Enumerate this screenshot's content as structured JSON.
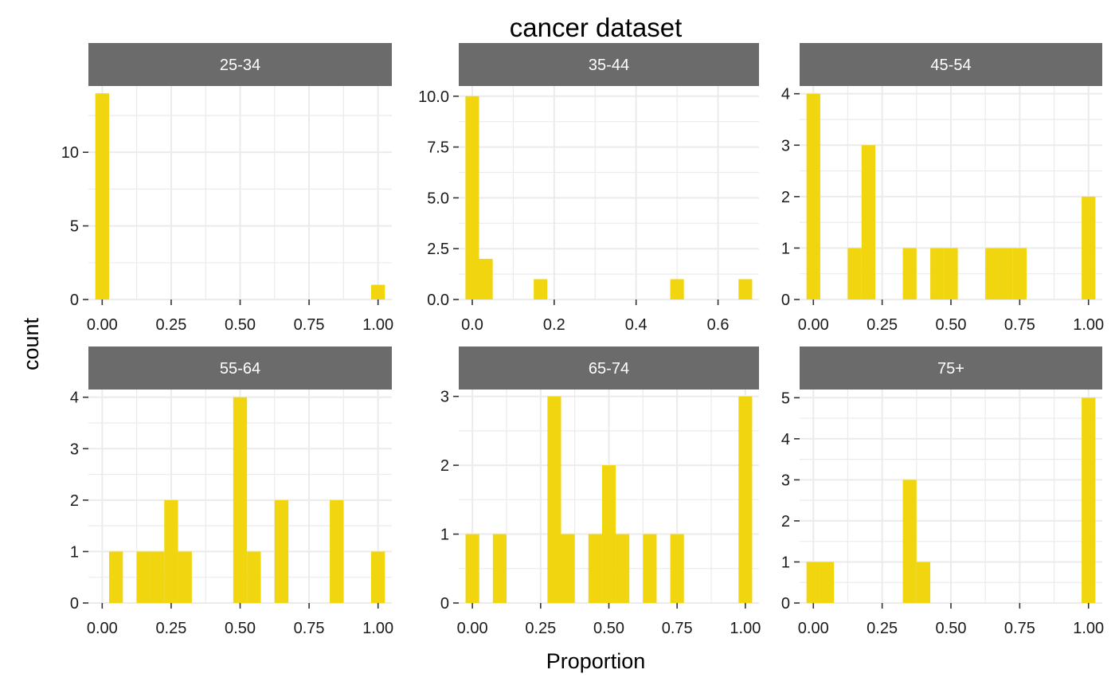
{
  "title": "cancer dataset",
  "xlabel": "Proportion",
  "ylabel": "count",
  "colors": {
    "bar": "#F0D50F",
    "strip": "#6B6B6B",
    "strip_text": "#FFFFFF",
    "grid": "#EBEBEB",
    "axis_text": "#1A1A1A",
    "background": "#FFFFFF"
  },
  "chart_data": [
    {
      "type": "bar",
      "panel": "25-34",
      "xlim": [
        -0.05,
        1.05
      ],
      "ylim": [
        0,
        14.5
      ],
      "xticks": [
        0,
        0.25,
        0.5,
        0.75,
        1
      ],
      "xtick_labels": [
        "0.00",
        "0.25",
        "0.50",
        "0.75",
        "1.00"
      ],
      "yticks": [
        0,
        5,
        10
      ],
      "ytick_labels": [
        "0",
        "5",
        "10"
      ],
      "bar_width": 0.05,
      "bars": [
        {
          "x": 0.0,
          "count": 14
        },
        {
          "x": 1.0,
          "count": 1
        }
      ]
    },
    {
      "type": "bar",
      "panel": "35-44",
      "xlim": [
        -0.033,
        0.7
      ],
      "ylim": [
        0,
        10.5
      ],
      "xticks": [
        0,
        0.2,
        0.4,
        0.6
      ],
      "xtick_labels": [
        "0.0",
        "0.2",
        "0.4",
        "0.6"
      ],
      "yticks": [
        0,
        2.5,
        5,
        7.5,
        10
      ],
      "ytick_labels": [
        "0.0",
        "2.5",
        "5.0",
        "7.5",
        "10.0"
      ],
      "bar_width": 0.0333,
      "bars": [
        {
          "x": 0.0,
          "count": 10
        },
        {
          "x": 0.0333,
          "count": 2
        },
        {
          "x": 0.1667,
          "count": 1
        },
        {
          "x": 0.5,
          "count": 1
        },
        {
          "x": 0.6667,
          "count": 1
        }
      ]
    },
    {
      "type": "bar",
      "panel": "45-54",
      "xlim": [
        -0.05,
        1.05
      ],
      "ylim": [
        0,
        4.15
      ],
      "xticks": [
        0,
        0.25,
        0.5,
        0.75,
        1
      ],
      "xtick_labels": [
        "0.00",
        "0.25",
        "0.50",
        "0.75",
        "1.00"
      ],
      "yticks": [
        0,
        1,
        2,
        3,
        4
      ],
      "ytick_labels": [
        "0",
        "1",
        "2",
        "3",
        "4"
      ],
      "bar_width": 0.05,
      "bars": [
        {
          "x": 0.0,
          "count": 4
        },
        {
          "x": 0.15,
          "count": 1
        },
        {
          "x": 0.2,
          "count": 3
        },
        {
          "x": 0.35,
          "count": 1
        },
        {
          "x": 0.45,
          "count": 1
        },
        {
          "x": 0.5,
          "count": 1
        },
        {
          "x": 0.65,
          "count": 1
        },
        {
          "x": 0.7,
          "count": 1
        },
        {
          "x": 0.75,
          "count": 1
        },
        {
          "x": 1.0,
          "count": 2
        }
      ]
    },
    {
      "type": "bar",
      "panel": "55-64",
      "xlim": [
        -0.05,
        1.05
      ],
      "ylim": [
        0,
        4.15
      ],
      "xticks": [
        0,
        0.25,
        0.5,
        0.75,
        1
      ],
      "xtick_labels": [
        "0.00",
        "0.25",
        "0.50",
        "0.75",
        "1.00"
      ],
      "yticks": [
        0,
        1,
        2,
        3,
        4
      ],
      "ytick_labels": [
        "0",
        "1",
        "2",
        "3",
        "4"
      ],
      "bar_width": 0.05,
      "bars": [
        {
          "x": 0.05,
          "count": 1
        },
        {
          "x": 0.15,
          "count": 1
        },
        {
          "x": 0.2,
          "count": 1
        },
        {
          "x": 0.25,
          "count": 2
        },
        {
          "x": 0.3,
          "count": 1
        },
        {
          "x": 0.5,
          "count": 4
        },
        {
          "x": 0.55,
          "count": 1
        },
        {
          "x": 0.65,
          "count": 2
        },
        {
          "x": 0.85,
          "count": 2
        },
        {
          "x": 1.0,
          "count": 1
        }
      ]
    },
    {
      "type": "bar",
      "panel": "65-74",
      "xlim": [
        -0.05,
        1.05
      ],
      "ylim": [
        0,
        3.1
      ],
      "xticks": [
        0,
        0.25,
        0.5,
        0.75,
        1
      ],
      "xtick_labels": [
        "0.00",
        "0.25",
        "0.50",
        "0.75",
        "1.00"
      ],
      "yticks": [
        0,
        1,
        2,
        3
      ],
      "ytick_labels": [
        "0",
        "1",
        "2",
        "3"
      ],
      "bar_width": 0.05,
      "bars": [
        {
          "x": 0.0,
          "count": 1
        },
        {
          "x": 0.1,
          "count": 1
        },
        {
          "x": 0.3,
          "count": 3
        },
        {
          "x": 0.35,
          "count": 1
        },
        {
          "x": 0.45,
          "count": 1
        },
        {
          "x": 0.5,
          "count": 2
        },
        {
          "x": 0.55,
          "count": 1
        },
        {
          "x": 0.65,
          "count": 1
        },
        {
          "x": 0.75,
          "count": 1
        },
        {
          "x": 1.0,
          "count": 3
        }
      ]
    },
    {
      "type": "bar",
      "panel": "75+",
      "xlim": [
        -0.05,
        1.05
      ],
      "ylim": [
        0,
        5.2
      ],
      "xticks": [
        0,
        0.25,
        0.5,
        0.75,
        1
      ],
      "xtick_labels": [
        "0.00",
        "0.25",
        "0.50",
        "0.75",
        "1.00"
      ],
      "yticks": [
        0,
        1,
        2,
        3,
        4,
        5
      ],
      "ytick_labels": [
        "0",
        "1",
        "2",
        "3",
        "4",
        "5"
      ],
      "bar_width": 0.05,
      "bars": [
        {
          "x": 0.0,
          "count": 1
        },
        {
          "x": 0.05,
          "count": 1
        },
        {
          "x": 0.35,
          "count": 3
        },
        {
          "x": 0.4,
          "count": 1
        },
        {
          "x": 1.0,
          "count": 5
        }
      ]
    }
  ]
}
